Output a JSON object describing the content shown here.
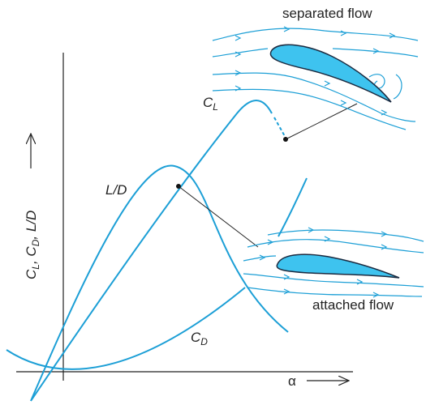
{
  "labels": {
    "separated": "separated flow",
    "attached": "attached flow",
    "cl": [
      "C",
      "L"
    ],
    "ld": "L/D",
    "cd": [
      "C",
      "D"
    ],
    "y_axis": [
      "C",
      "L",
      ", C",
      "D",
      ", L/D"
    ],
    "x_axis": "α"
  }
}
